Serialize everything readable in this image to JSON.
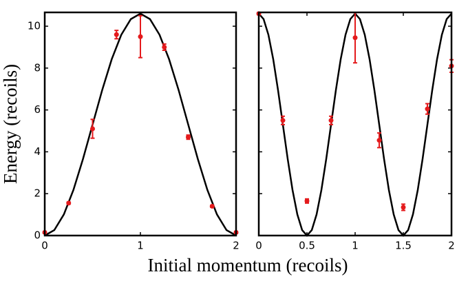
{
  "chart_data": [
    {
      "type": "scatter",
      "xlim": [
        0,
        2
      ],
      "ylim": [
        0,
        10.66
      ],
      "xticks": [
        0,
        1,
        2
      ],
      "yticks": [
        0,
        2,
        4,
        6,
        8,
        10
      ],
      "ytick_labels": true,
      "ylabel": "Energy (recoils)",
      "xlabel": "Initial momentum (recoils)",
      "x": [
        0,
        0.25,
        0.5,
        0.75,
        1,
        1.25,
        1.5,
        1.75,
        2
      ],
      "values": [
        0.15,
        1.55,
        5.1,
        9.6,
        9.5,
        9.0,
        4.7,
        1.4,
        0.15
      ],
      "errors": [
        0.05,
        0.05,
        0.45,
        0.2,
        1.0,
        0.15,
        0.1,
        0.05,
        0.05
      ],
      "color": "#e41a1c",
      "curve": {
        "color": "#000000",
        "x": [
          0,
          0.1,
          0.2,
          0.3,
          0.4,
          0.5,
          0.6,
          0.7,
          0.8,
          0.9,
          1,
          1.1,
          1.2,
          1.3,
          1.4,
          1.5,
          1.6,
          1.7,
          1.8,
          1.9,
          2
        ],
        "values": [
          0,
          0.26,
          1.01,
          2.18,
          3.66,
          5.3,
          6.94,
          8.42,
          9.59,
          10.34,
          10.6,
          10.34,
          9.59,
          8.42,
          6.94,
          5.3,
          3.66,
          2.18,
          1.01,
          0.26,
          0
        ]
      }
    },
    {
      "type": "scatter",
      "xlim": [
        0,
        2
      ],
      "ylim": [
        0,
        10.66
      ],
      "xticks": [
        0,
        0.5,
        1,
        1.5,
        2
      ],
      "yticks": [
        0,
        2,
        4,
        6,
        8,
        10
      ],
      "ytick_labels": false,
      "x": [
        0,
        0.25,
        0.5,
        0.75,
        1,
        1.25,
        1.5,
        1.75,
        2
      ],
      "values": [
        10.6,
        5.5,
        1.65,
        5.5,
        9.45,
        4.55,
        1.35,
        6.05,
        8.1
      ],
      "errors": [
        0.05,
        0.2,
        0.1,
        0.2,
        1.2,
        0.35,
        0.15,
        0.25,
        0.3
      ],
      "color": "#e41a1c",
      "curve": {
        "color": "#000000",
        "x": [
          0,
          0.05,
          0.1,
          0.15,
          0.2,
          0.25,
          0.3,
          0.35,
          0.4,
          0.45,
          0.5,
          0.55,
          0.6,
          0.65,
          0.7,
          0.75,
          0.8,
          0.85,
          0.9,
          0.95,
          1,
          1.05,
          1.1,
          1.15,
          1.2,
          1.25,
          1.3,
          1.35,
          1.4,
          1.45,
          1.5,
          1.55,
          1.6,
          1.65,
          1.7,
          1.75,
          1.8,
          1.85,
          1.9,
          1.95,
          2
        ],
        "values": [
          10.6,
          10.34,
          9.59,
          8.42,
          6.94,
          5.3,
          3.66,
          2.18,
          1.01,
          0.26,
          0,
          0.26,
          1.01,
          2.18,
          3.66,
          5.3,
          6.94,
          8.42,
          9.59,
          10.34,
          10.6,
          10.34,
          9.59,
          8.42,
          6.94,
          5.3,
          3.66,
          2.18,
          1.01,
          0.26,
          0,
          0.26,
          1.01,
          2.18,
          3.66,
          5.3,
          6.94,
          8.42,
          9.59,
          10.34,
          10.6
        ]
      }
    }
  ]
}
